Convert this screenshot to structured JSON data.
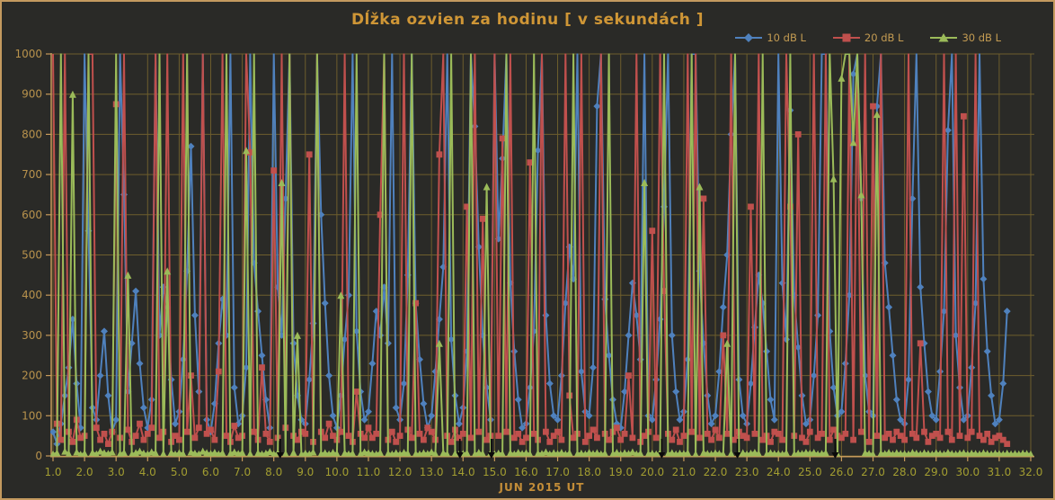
{
  "window": {
    "background": "#2a2a27",
    "border_color": "#c49a5f",
    "grid_color": "#6e5e2d",
    "axis_color": "#c79a5a",
    "y_label_color": "#b8924c",
    "x_label_color": "#a29d31",
    "annotation_color": "#0a0a0a"
  },
  "chart_data": {
    "type": "line",
    "title": "Dĺžka ozvien za hodinu [ v sekundách ]",
    "xlabel": "JUN 2015 UT",
    "ylabel": "",
    "xlim": [
      1.0,
      32.0
    ],
    "ylim": [
      0,
      1000
    ],
    "grid": true,
    "legend_position": "top-right",
    "x_ticks": [
      "1.0",
      "2.0",
      "3.0",
      "4.0",
      "5.0",
      "6.0",
      "7.0",
      "8.0",
      "9.0",
      "10.0",
      "11.0",
      "12.0",
      "13.0",
      "14.0",
      "15.0",
      "16.0",
      "17.0",
      "18.0",
      "19.0",
      "20.0",
      "21.0",
      "22.0",
      "23.0",
      "24.0",
      "25.0",
      "26.0",
      "27.0",
      "28.0",
      "29.0",
      "30.0",
      "31.0",
      "32.0"
    ],
    "y_ticks": [
      0,
      100,
      200,
      300,
      400,
      500,
      600,
      700,
      800,
      900,
      1000
    ],
    "x_start": 1.0,
    "x_step": 0.125,
    "clip_at": 1000,
    "series": [
      {
        "name": "10 dB L",
        "color": "#4f81bd",
        "marker": "diamond",
        "values": [
          60,
          30,
          80,
          150,
          220,
          340,
          180,
          70,
          1000,
          560,
          120,
          90,
          200,
          310,
          150,
          60,
          90,
          1000,
          650,
          160,
          280,
          410,
          230,
          120,
          70,
          140,
          1000,
          300,
          420,
          370,
          190,
          80,
          110,
          240,
          460,
          770,
          350,
          160,
          1000,
          90,
          60,
          130,
          280,
          390,
          300,
          1000,
          170,
          80,
          100,
          220,
          1000,
          480,
          360,
          250,
          140,
          70,
          1000,
          420,
          300,
          640,
          1000,
          280,
          150,
          90,
          80,
          190,
          330,
          1000,
          600,
          380,
          200,
          100,
          70,
          150,
          290,
          400,
          1000,
          310,
          160,
          90,
          110,
          230,
          360,
          300,
          420,
          280,
          1000,
          120,
          90,
          180,
          450,
          1000,
          380,
          240,
          130,
          70,
          100,
          210,
          340,
          470,
          1000,
          290,
          150,
          80,
          120,
          260,
          1000,
          820,
          520,
          300,
          170,
          90,
          1000,
          540,
          740,
          1000,
          430,
          260,
          140,
          70,
          80,
          170,
          310,
          760,
          1000,
          350,
          180,
          100,
          90,
          200,
          380,
          520,
          440,
          1000,
          210,
          110,
          100,
          220,
          870,
          1000,
          390,
          250,
          140,
          80,
          70,
          160,
          300,
          430,
          350,
          240,
          1000,
          100,
          90,
          190,
          340,
          620,
          1000,
          300,
          160,
          90,
          110,
          240,
          1000,
          1000,
          460,
          280,
          150,
          80,
          100,
          210,
          370,
          500,
          800,
          1000,
          190,
          100,
          80,
          180,
          320,
          450,
          380,
          260,
          140,
          90,
          1000,
          430,
          290,
          860,
          400,
          270,
          150,
          80,
          90,
          200,
          350,
          1000,
          1000,
          310,
          170,
          100,
          110,
          230,
          400,
          950,
          1000,
          640,
          200,
          110,
          100,
          870,
          1000,
          480,
          370,
          250,
          140,
          90,
          80,
          190,
          640,
          1000,
          420,
          280,
          160,
          100,
          90,
          210,
          360,
          810,
          1000,
          300,
          170,
          90,
          100,
          220,
          380,
          1000,
          440,
          260,
          150,
          80,
          90,
          180,
          360
        ]
      },
      {
        "name": "20 dB L",
        "color": "#c0504d",
        "marker": "square",
        "values": [
          1000,
          80,
          40,
          1000,
          60,
          35,
          90,
          45,
          50,
          1000,
          1000,
          70,
          40,
          55,
          30,
          60,
          875,
          45,
          1000,
          65,
          35,
          50,
          80,
          40,
          55,
          70,
          1000,
          45,
          60,
          1000,
          35,
          50,
          40,
          1000,
          60,
          200,
          45,
          70,
          1000,
          55,
          65,
          40,
          210,
          1000,
          50,
          35,
          75,
          45,
          50,
          1000,
          755,
          60,
          40,
          220,
          55,
          35,
          710,
          45,
          1000,
          70,
          1000,
          50,
          40,
          60,
          55,
          750,
          35,
          1000,
          60,
          45,
          80,
          50,
          40,
          60,
          1000,
          50,
          35,
          160,
          55,
          45,
          70,
          45,
          55,
          600,
          1000,
          40,
          60,
          35,
          50,
          1000,
          65,
          45,
          380,
          55,
          40,
          70,
          60,
          40,
          750,
          1000,
          50,
          35,
          65,
          45,
          55,
          620,
          45,
          1000,
          60,
          590,
          40,
          50,
          1000,
          50,
          790,
          60,
          1000,
          45,
          55,
          35,
          45,
          730,
          55,
          40,
          1000,
          60,
          35,
          50,
          60,
          40,
          1000,
          150,
          45,
          55,
          1000,
          35,
          50,
          65,
          45,
          1000,
          55,
          40,
          60,
          70,
          40,
          55,
          200,
          45,
          1000,
          35,
          50,
          60,
          560,
          45,
          1000,
          410,
          55,
          40,
          65,
          35,
          50,
          1000,
          60,
          1000,
          45,
          640,
          55,
          40,
          65,
          45,
          300,
          55,
          1000,
          40,
          60,
          50,
          45,
          620,
          55,
          1000,
          40,
          50,
          35,
          60,
          55,
          40,
          1000,
          620,
          50,
          800,
          45,
          35,
          60,
          1000,
          45,
          55,
          1000,
          40,
          65,
          50,
          45,
          55,
          1000,
          40,
          1000,
          60,
          1000,
          35,
          870,
          50,
          1000,
          45,
          55,
          40,
          60,
          50,
          40,
          1000,
          55,
          45,
          280,
          60,
          35,
          50,
          55,
          45,
          1000,
          60,
          40,
          1000,
          50,
          845,
          45,
          60,
          1000,
          50,
          40,
          55,
          35,
          45,
          50,
          40,
          30
        ]
      },
      {
        "name": "30 dB L",
        "color": "#9bbb59",
        "marker": "triangle",
        "values": [
          5,
          8,
          1000,
          12,
          6,
          900,
          10,
          4,
          7,
          1000,
          9,
          5,
          12,
          8,
          6,
          10,
          1000,
          6,
          9,
          450,
          5,
          8,
          12,
          7,
          5,
          10,
          8,
          1000,
          6,
          460,
          9,
          5,
          8,
          6,
          1000,
          10,
          7,
          5,
          12,
          8,
          6,
          9,
          5,
          8,
          1000,
          7,
          10,
          6,
          9,
          760,
          6,
          1000,
          8,
          5,
          7,
          11,
          5,
          8,
          680,
          6,
          1000,
          9,
          300,
          5,
          7,
          5,
          10,
          1000,
          6,
          8,
          5,
          9,
          6,
          400,
          8,
          5,
          7,
          1000,
          6,
          10,
          8,
          6,
          5,
          9,
          1000,
          7,
          5,
          8,
          5,
          9,
          7,
          1000,
          6,
          5,
          8,
          6,
          10,
          6,
          280,
          8,
          5,
          1000,
          7,
          5,
          6,
          8,
          1000,
          5,
          9,
          6,
          670,
          8,
          5,
          7,
          6,
          1000,
          8,
          5,
          9,
          6,
          8,
          5,
          1000,
          7,
          6,
          10,
          5,
          8,
          6,
          9,
          5,
          8,
          1000,
          6,
          7,
          5,
          9,
          6,
          8,
          5,
          7,
          1000,
          6,
          9,
          5,
          8,
          6,
          10,
          5,
          7,
          680,
          6,
          7,
          5,
          9,
          1000,
          6,
          8,
          5,
          7,
          6,
          8,
          1000,
          5,
          670,
          9,
          6,
          5,
          8,
          6,
          5,
          280,
          7,
          1000,
          5,
          8,
          5,
          7,
          9,
          6,
          1000,
          5,
          8,
          6,
          6,
          5,
          8,
          1000,
          5,
          7,
          6,
          9,
          7,
          9,
          5,
          6,
          8,
          1000,
          690,
          5,
          940,
          1000,
          1000,
          780,
          1000,
          650,
          8,
          6,
          5,
          850,
          7,
          6,
          9,
          5,
          8,
          6,
          6,
          5,
          9,
          7,
          5,
          8,
          6,
          5,
          8,
          6,
          5,
          9,
          6,
          5,
          7,
          8,
          5,
          7,
          6,
          5,
          8,
          6,
          5,
          7,
          6,
          5,
          7,
          5,
          6,
          5,
          7,
          6,
          5
        ]
      }
    ],
    "annotations": {
      "black_markers_x": [
        8.2,
        13.9,
        14.9,
        20.3,
        22.7,
        25.8
      ]
    }
  }
}
